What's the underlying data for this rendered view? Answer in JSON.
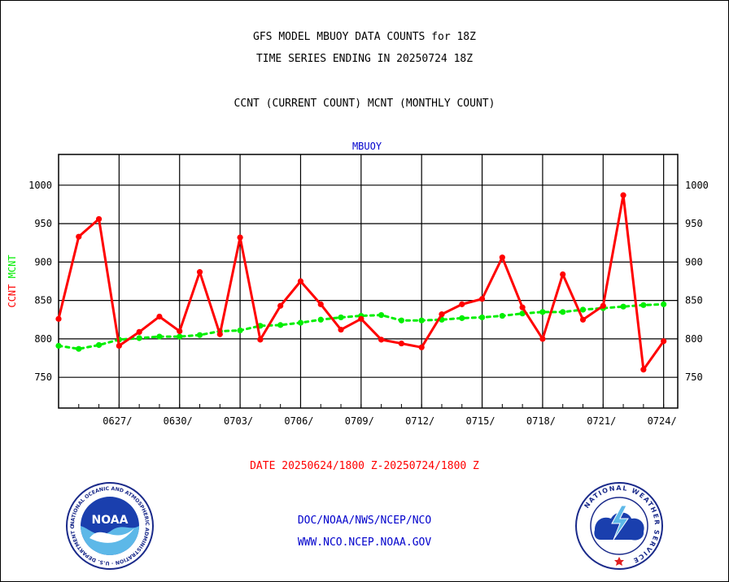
{
  "header": {
    "title_line1": "GFS MODEL MBUOY DATA COUNTS for 18Z",
    "title_line2": "TIME SERIES ENDING IN 20250724 18Z",
    "subtitle": "CCNT (CURRENT COUNT) MCNT (MONTHLY COUNT)"
  },
  "footer": {
    "date_range": "DATE 20250624/1800 Z-20250724/1800 Z",
    "org": "DOC/NOAA/NWS/NCEP/NCO",
    "url": "WWW.NCO.NCEP.NOAA.GOV"
  },
  "logos": {
    "noaa_text": "NOAA",
    "noaa_ring": "NATIONAL OCEANIC AND ATMOSPHERIC ADMINISTRATION · U.S. DEPARTMENT OF COMMERCE",
    "nws_ring": "NATIONAL WEATHER SERVICE"
  },
  "colors": {
    "ccnt": "#ff0000",
    "mcnt": "#00ee00",
    "label_blue": "#0000cc",
    "date_red": "#ff0000"
  },
  "chart_data": {
    "type": "line",
    "title": "MBUOY",
    "ylabel_parts": [
      {
        "text": "CCNT",
        "color": "#ff0000"
      },
      {
        "text": "MCNT",
        "color": "#00ee00"
      }
    ],
    "ylim": [
      710,
      1040
    ],
    "yticks": [
      750,
      800,
      850,
      900,
      950,
      1000
    ],
    "xlim": [
      0,
      30.7
    ],
    "xticks": [
      {
        "x": 3,
        "label": "0627/"
      },
      {
        "x": 6,
        "label": "0630/"
      },
      {
        "x": 9,
        "label": "0703/"
      },
      {
        "x": 12,
        "label": "0706/"
      },
      {
        "x": 15,
        "label": "0709/"
      },
      {
        "x": 18,
        "label": "0712/"
      },
      {
        "x": 21,
        "label": "0715/"
      },
      {
        "x": 24,
        "label": "0718/"
      },
      {
        "x": 27,
        "label": "0721/"
      },
      {
        "x": 30,
        "label": "0724/"
      }
    ],
    "grid": true,
    "series": [
      {
        "name": "CCNT",
        "style": "solid",
        "values": [
          826,
          933,
          956,
          791,
          809,
          829,
          810,
          887,
          806,
          932,
          799,
          843,
          875,
          845,
          812,
          826,
          799,
          794,
          789,
          832,
          845,
          852,
          906,
          841,
          800,
          884,
          825,
          843,
          987,
          760,
          797
        ]
      },
      {
        "name": "MCNT",
        "style": "dotted",
        "values": [
          791,
          787,
          792,
          799,
          801,
          803,
          803,
          805,
          810,
          811,
          817,
          818,
          821,
          825,
          828,
          830,
          831,
          824,
          824,
          825,
          827,
          828,
          830,
          833,
          835,
          835,
          838,
          840,
          842,
          844,
          845
        ]
      }
    ]
  }
}
